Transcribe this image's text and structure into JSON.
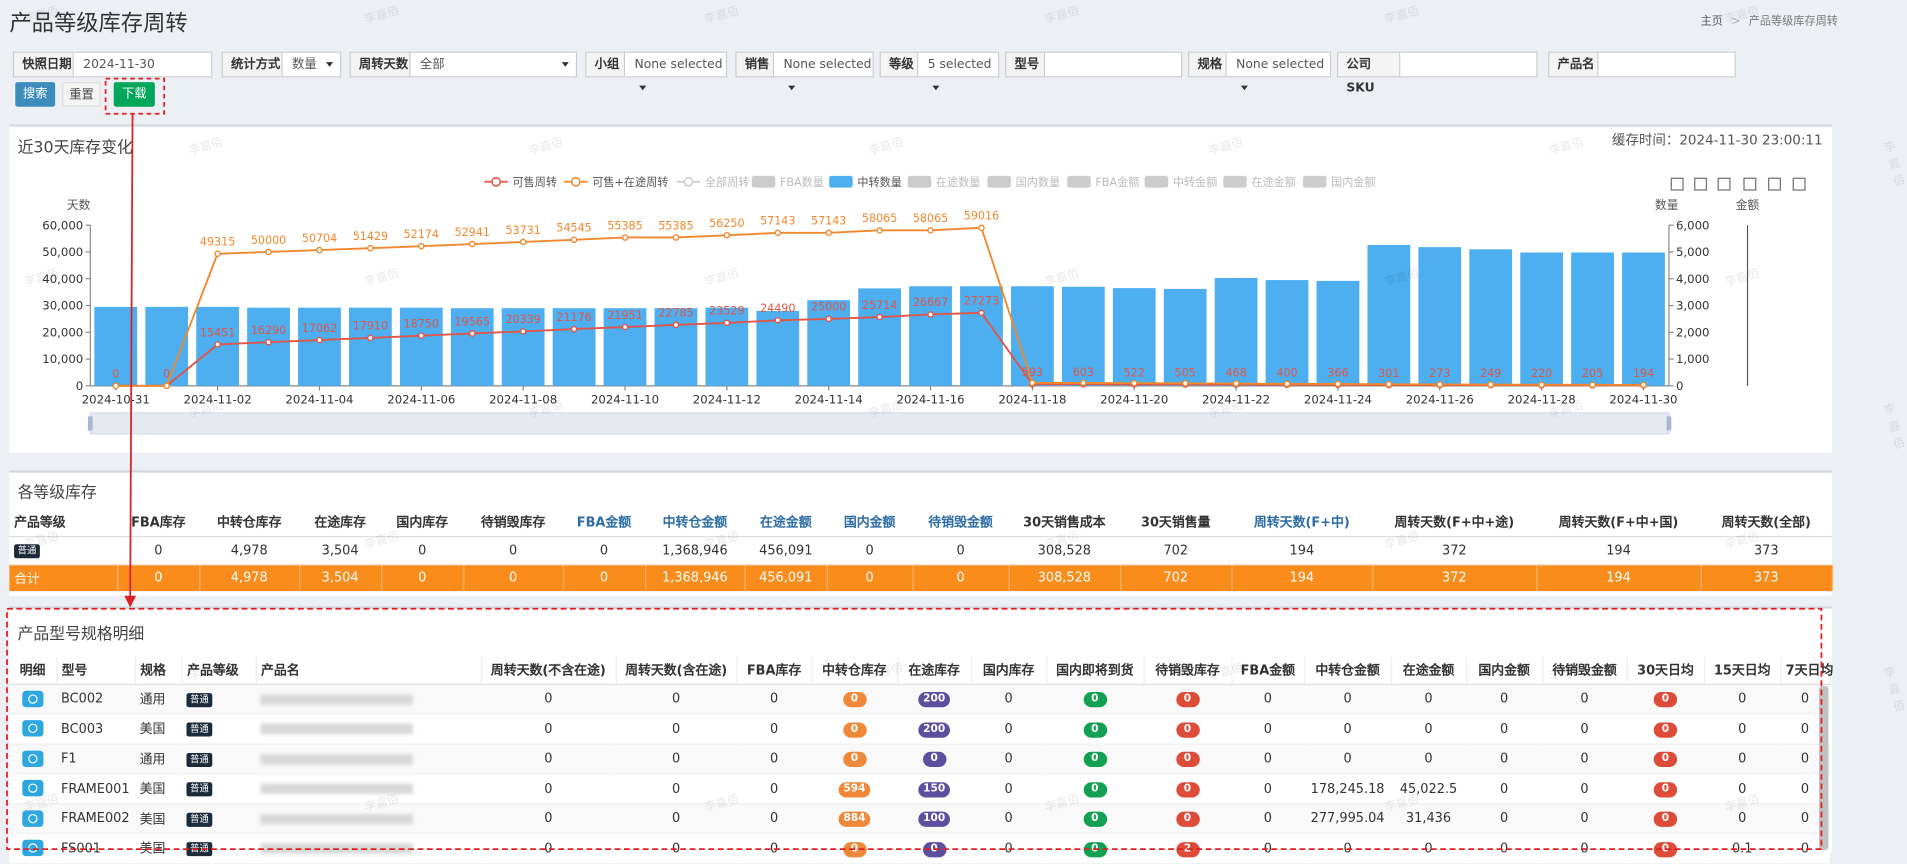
{
  "header": {
    "title": "产品等级库存周转",
    "breadcrumb": [
      "主页",
      "产品等级库存周转"
    ]
  },
  "watermark": "李嘉佰",
  "filters": [
    {
      "label": "快照日期",
      "value": "2024-11-30"
    },
    {
      "label": "统计方式",
      "value": "数量"
    },
    {
      "label": "周转天数",
      "value": "全部"
    },
    {
      "label": "小组",
      "value": "None selected"
    },
    {
      "label": "销售",
      "value": "None selected"
    },
    {
      "label": "等级",
      "value": "5 selected"
    },
    {
      "label": "型号"
    },
    {
      "label": "规格",
      "value": "None selected"
    },
    {
      "label": "公司SKU"
    },
    {
      "label": "产品名"
    }
  ],
  "buttons": {
    "search": "搜索",
    "reset": "重置",
    "download": "下载"
  },
  "trend": {
    "title": "近30天库存变化",
    "cache_time": "缓存时间：2024-11-30 23:00:11",
    "chart": {
      "type": "combo",
      "ylabel": "天数",
      "y2label": "数量",
      "y3label": "金额",
      "categories": [
        "2024-10-31",
        null,
        "2024-11-02",
        null,
        "2024-11-04",
        null,
        "2024-11-06",
        null,
        "2024-11-08",
        null,
        "2024-11-10",
        null,
        "2024-11-12",
        null,
        "2024-11-14",
        null,
        "2024-11-16",
        null,
        "2024-11-18",
        null,
        "2024-11-20",
        null,
        "2024-11-22",
        null,
        "2024-11-24",
        null,
        "2024-11-26",
        null,
        "2024-11-28",
        null,
        "2024-11-30"
      ],
      "ylim": [
        0,
        60000
      ],
      "yticks": [
        0,
        {
          "value": 10000,
          "label": "10,000"
        },
        {
          "value": 20000,
          "label": "20,000"
        },
        {
          "value": 30000,
          "label": "30,000"
        },
        {
          "value": 40000,
          "label": "40,000"
        },
        {
          "value": 50000,
          "label": "50,000"
        },
        {
          "value": 60000,
          "label": "60,000"
        }
      ],
      "y2lim": [
        0,
        6000
      ],
      "y2ticks": [
        0,
        {
          "value": 1000,
          "label": "1,000"
        },
        {
          "value": 2000,
          "label": "2,000"
        },
        {
          "value": 3000,
          "label": "3,000"
        },
        {
          "value": 4000,
          "label": "4,000"
        },
        {
          "value": 5000,
          "label": "5,000"
        },
        {
          "value": 6000,
          "label": "6,000"
        }
      ],
      "series": [
        {
          "name": "可售周转",
          "type": "line",
          "color": "#e05548",
          "values": [
            0,
            0,
            15451,
            16290,
            17062,
            17910,
            18750,
            19565,
            20339,
            21176,
            21951,
            22785,
            23529,
            24490,
            25000,
            25714,
            26667,
            27273,
            593,
            603,
            522,
            505,
            468,
            400,
            366,
            301,
            273,
            249,
            220,
            205,
            194
          ]
        },
        {
          "name": "可售+在途周转",
          "type": "line",
          "color": "#f0892e",
          "values": [
            0,
            0,
            49315,
            50000,
            50704,
            51429,
            52174,
            52941,
            53731,
            54545,
            55385,
            55385,
            56250,
            57143,
            57143,
            58065,
            58065,
            59016,
            1100,
            1080,
            1000,
            950,
            880,
            760,
            700,
            580,
            520,
            480,
            430,
            400,
            372
          ],
          "value_labels": [
            null,
            null,
            "49315",
            "50000",
            "50704",
            "51429",
            "52174",
            "52941",
            "53731",
            "54545",
            "55385",
            "55385",
            "56250",
            "57143",
            "57143",
            "58065",
            "58065",
            "59016",
            null,
            null,
            null,
            null,
            null,
            null,
            null,
            null,
            null,
            null,
            null,
            null,
            null
          ]
        },
        {
          "name": "全部周转",
          "type": "line",
          "hidden": true
        },
        {
          "name": "FBA数量",
          "type": "bar",
          "hidden": true
        },
        {
          "name": "中转数量",
          "type": "bar",
          "axis": "y2",
          "color": "#4daef0",
          "values": [
            2950,
            2950,
            2950,
            2920,
            2920,
            2920,
            2920,
            2900,
            2900,
            2900,
            2900,
            2900,
            2920,
            2800,
            3200,
            3640,
            3720,
            3720,
            3720,
            3700,
            3650,
            3620,
            4030,
            3950,
            3920,
            5260,
            5180,
            5100,
            4980,
            4980,
            4980
          ]
        },
        {
          "name": "在途数量",
          "type": "bar",
          "hidden": true
        },
        {
          "name": "国内数量",
          "type": "bar",
          "hidden": true
        },
        {
          "name": "FBA金额",
          "type": "bar",
          "hidden": true
        },
        {
          "name": "中转金额",
          "type": "bar",
          "hidden": true
        },
        {
          "name": "在途金额",
          "type": "bar",
          "hidden": true
        },
        {
          "name": "国内金额",
          "type": "bar",
          "hidden": true
        }
      ]
    }
  },
  "grade_table": {
    "title": "各等级库存",
    "columns": [
      "产品等级",
      "FBA库存",
      "中转仓库存",
      "在途库存",
      "国内库存",
      "待销毁库存",
      "FBA金额",
      "中转仓金额",
      "在途金额",
      "国内金额",
      "待销毁金额",
      "30天销售成本",
      "30天销售量",
      "周转天数(F+中)",
      "周转天数(F+中+途)",
      "周转天数(F+中+国)",
      "周转天数(全部)"
    ],
    "rows": [
      [
        "普通",
        "0",
        "4,978",
        "3,504",
        "0",
        "0",
        "0",
        "1,368,946",
        "456,091",
        "0",
        "0",
        "308,528",
        "702",
        "194",
        "372",
        "194",
        "373"
      ]
    ],
    "total": [
      "合计",
      "0",
      "4,978",
      "3,504",
      "0",
      "0",
      "0",
      "1,368,946",
      "456,091",
      "0",
      "0",
      "308,528",
      "702",
      "194",
      "372",
      "194",
      "373"
    ]
  },
  "detail_table": {
    "title": "产品型号规格明细",
    "columns": [
      "明细",
      "型号",
      "规格",
      "产品等级",
      "产品名",
      "周转天数(不含在途)",
      "周转天数(含在途)",
      "FBA库存",
      "中转仓库存",
      "在途库存",
      "国内库存",
      "国内即将到货",
      "待销毁库存",
      "FBA金额",
      "中转仓金额",
      "在途金额",
      "国内金额",
      "待销毁金额",
      "30天日均",
      "15天日均",
      "7天日均"
    ],
    "rows": [
      [
        "BC002",
        "通用",
        "普通",
        "0",
        "0",
        "0",
        "0",
        "200",
        "0",
        "0",
        "0",
        "0",
        "0",
        "0",
        "0",
        "0",
        "0",
        "0",
        "0"
      ],
      [
        "BC003",
        "美国",
        "普通",
        "0",
        "0",
        "0",
        "0",
        "200",
        "0",
        "0",
        "0",
        "0",
        "0",
        "0",
        "0",
        "0",
        "0",
        "0",
        "0"
      ],
      [
        "F1",
        "通用",
        "普通",
        "0",
        "0",
        "0",
        "0",
        "0",
        "0",
        "0",
        "0",
        "0",
        "0",
        "0",
        "0",
        "0",
        "0",
        "0",
        "0"
      ],
      [
        "FRAME001",
        "美国",
        "普通",
        "0",
        "0",
        "0",
        "594",
        "150",
        "0",
        "0",
        "0",
        "0",
        "178,245.18",
        "45,022.5",
        "0",
        "0",
        "0",
        "0",
        "0"
      ],
      [
        "FRAME002",
        "美国",
        "普通",
        "0",
        "0",
        "0",
        "884",
        "100",
        "0",
        "0",
        "0",
        "0",
        "277,995.04",
        "31,436",
        "0",
        "0",
        "0",
        "0",
        "0"
      ],
      [
        "FS001",
        "美国",
        "普通",
        "0",
        "0",
        "0",
        "0",
        "0",
        "0",
        "0",
        "2",
        "0",
        "0",
        "0",
        "0",
        "0",
        "0",
        "0.1",
        "0"
      ]
    ]
  }
}
